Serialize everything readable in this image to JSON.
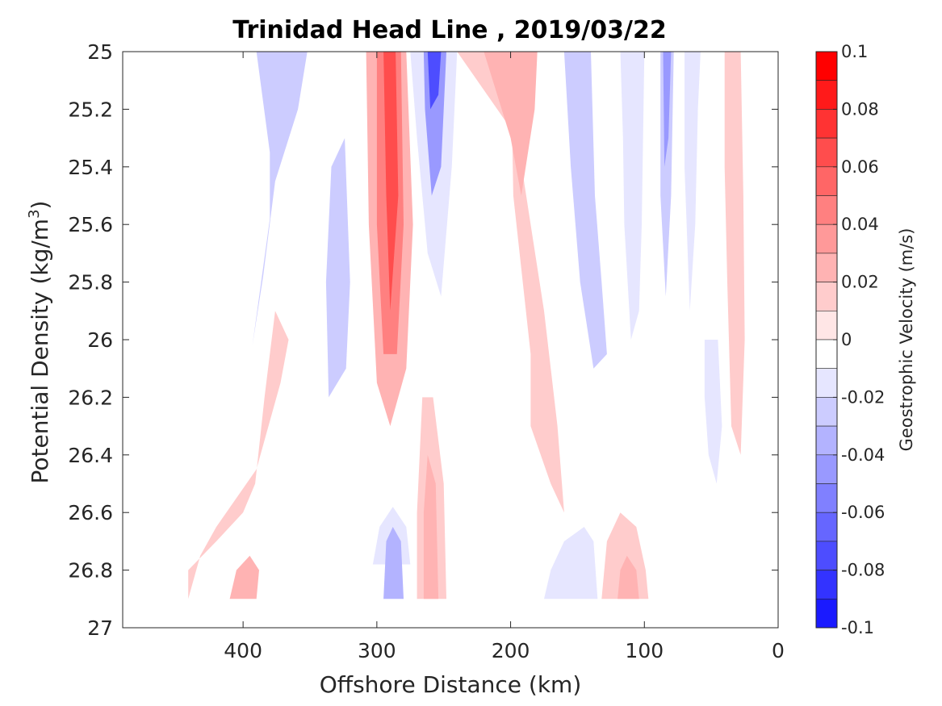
{
  "chart_data": {
    "type": "heatmap",
    "title": "Trinidad Head Line , 2019/03/22",
    "xlabel": "Offshore Distance (km)",
    "ylabel": "Potential Density (kg/m",
    "ylabel_sup": "3",
    "ylabel_close": ")",
    "xlim": [
      490,
      0
    ],
    "ylim": [
      25,
      27
    ],
    "x_reversed": true,
    "y_reversed": true,
    "xticks": [
      400,
      300,
      200,
      100,
      0
    ],
    "xtick_labels": [
      "400",
      "300",
      "200",
      "100",
      "0"
    ],
    "yticks": [
      25,
      25.2,
      25.4,
      25.6,
      25.8,
      26,
      26.2,
      26.4,
      26.6,
      26.8,
      27
    ],
    "ytick_labels": [
      "25",
      "25.2",
      "25.4",
      "25.6",
      "25.8",
      "26",
      "26.2",
      "26.4",
      "26.6",
      "26.8",
      "27"
    ],
    "colorbar": {
      "label": "Geostrophic Velocity (m/s)",
      "range": [
        -0.1,
        0.1
      ],
      "tick_values": [
        0.1,
        0.08,
        0.06,
        0.04,
        0.02,
        0,
        -0.02,
        -0.04,
        -0.06,
        -0.08,
        -0.1
      ],
      "tick_labels": [
        "0.1",
        "0.08",
        "0.06",
        "0.04",
        "0.02",
        "0",
        "-0.02",
        "-0.04",
        "-0.06",
        "-0.08",
        "-0.1"
      ],
      "levels": [
        0.1,
        0.09,
        0.08,
        0.07,
        0.06,
        0.05,
        0.04,
        0.03,
        0.02,
        0.01,
        0,
        -0.01,
        -0.02,
        -0.03,
        -0.04,
        -0.05,
        -0.06,
        -0.07,
        -0.08,
        -0.09,
        -0.1
      ],
      "colors": [
        "#ff0000",
        "#ff1a1a",
        "#ff3333",
        "#ff4d4d",
        "#ff6666",
        "#ff8080",
        "#ff9999",
        "#ffb3b3",
        "#ffcccc",
        "#ffe6e6",
        "#ffffff",
        "#e6e6ff",
        "#ccccff",
        "#b3b3ff",
        "#9999ff",
        "#8080ff",
        "#6666ff",
        "#4d4dff",
        "#3333ff",
        "#1a1aff"
      ]
    },
    "regions": [
      {
        "velocity": -0.01,
        "poly": [
          [
            441,
            25.0
          ],
          [
            414,
            25.0
          ],
          [
            434,
            25.12
          ],
          [
            437,
            25.5
          ],
          [
            437,
            25.8
          ],
          [
            437,
            26.2
          ],
          [
            432,
            26.3
          ],
          [
            447,
            26.39
          ],
          [
            459,
            26.2
          ],
          [
            470,
            25.8
          ],
          [
            478,
            25.5
          ],
          [
            490,
            25.3
          ],
          [
            490,
            25.0
          ]
        ]
      },
      {
        "velocity": -0.03,
        "poly": [
          [
            390,
            25.0
          ],
          [
            352,
            25.0
          ],
          [
            359,
            25.2
          ],
          [
            376,
            25.45
          ],
          [
            385,
            25.78
          ],
          [
            393,
            26.02
          ],
          [
            380,
            25.58
          ],
          [
            380,
            25.35
          ]
        ]
      },
      {
        "velocity": -0.01,
        "poly": [
          [
            318,
            25.0
          ],
          [
            308,
            25.1
          ],
          [
            312,
            25.6
          ],
          [
            316,
            26.3
          ],
          [
            328,
            26.55
          ],
          [
            350,
            26.55
          ],
          [
            366,
            26.3
          ],
          [
            372,
            26.0
          ],
          [
            360,
            25.7
          ],
          [
            345,
            25.4
          ],
          [
            330,
            25.1
          ]
        ]
      },
      {
        "velocity": -0.03,
        "poly": [
          [
            324,
            25.3
          ],
          [
            320,
            25.8
          ],
          [
            323,
            26.1
          ],
          [
            336,
            26.2
          ],
          [
            338,
            25.8
          ],
          [
            334,
            25.4
          ]
        ]
      },
      {
        "velocity": 0.02,
        "poly": [
          [
            308,
            25.0
          ],
          [
            278,
            25.0
          ],
          [
            273,
            25.6
          ],
          [
            278,
            26.1
          ],
          [
            290,
            26.3
          ],
          [
            300,
            26.15
          ],
          [
            306,
            25.6
          ]
        ]
      },
      {
        "velocity": 0.04,
        "poly": [
          [
            300,
            25.0
          ],
          [
            282,
            25.0
          ],
          [
            280,
            25.6
          ],
          [
            285,
            26.05
          ],
          [
            295,
            26.05
          ],
          [
            300,
            25.6
          ]
        ]
      },
      {
        "velocity": 0.06,
        "poly": [
          [
            295,
            25.0
          ],
          [
            286,
            25.0
          ],
          [
            284,
            25.5
          ],
          [
            290,
            25.9
          ],
          [
            293,
            25.5
          ]
        ]
      },
      {
        "velocity": -0.02,
        "poly": [
          [
            275,
            25.0
          ],
          [
            240,
            25.0
          ],
          [
            244,
            25.4
          ],
          [
            252,
            25.85
          ],
          [
            262,
            25.7
          ],
          [
            270,
            25.3
          ]
        ]
      },
      {
        "velocity": -0.05,
        "poly": [
          [
            265,
            25.0
          ],
          [
            248,
            25.0
          ],
          [
            252,
            25.4
          ],
          [
            259,
            25.5
          ],
          [
            264,
            25.2
          ]
        ]
      },
      {
        "velocity": -0.08,
        "poly": [
          [
            262,
            25.0
          ],
          [
            252,
            25.0
          ],
          [
            254,
            25.15
          ],
          [
            260,
            25.2
          ]
        ]
      },
      {
        "velocity": -0.02,
        "poly": [
          [
            303,
            26.78
          ],
          [
            275,
            26.78
          ],
          [
            278,
            26.65
          ],
          [
            288,
            26.58
          ],
          [
            298,
            26.65
          ]
        ]
      },
      {
        "velocity": -0.04,
        "poly": [
          [
            295,
            26.9
          ],
          [
            280,
            26.9
          ],
          [
            282,
            26.7
          ],
          [
            288,
            26.65
          ],
          [
            293,
            26.7
          ]
        ]
      },
      {
        "velocity": 0.01,
        "poly": [
          [
            441,
            26.9
          ],
          [
            432,
            26.75
          ],
          [
            420,
            26.65
          ],
          [
            390,
            26.45
          ],
          [
            372,
            26.15
          ],
          [
            366,
            26.0
          ],
          [
            376,
            25.9
          ],
          [
            384,
            26.2
          ],
          [
            391,
            26.5
          ],
          [
            400,
            26.6
          ],
          [
            420,
            26.7
          ],
          [
            441,
            26.8
          ]
        ]
      },
      {
        "velocity": 0.02,
        "poly": [
          [
            410,
            26.9
          ],
          [
            390,
            26.9
          ],
          [
            388,
            26.8
          ],
          [
            395,
            26.75
          ],
          [
            405,
            26.8
          ]
        ]
      },
      {
        "velocity": 0.01,
        "poly": [
          [
            270,
            26.9
          ],
          [
            248,
            26.9
          ],
          [
            250,
            26.5
          ],
          [
            258,
            26.2
          ],
          [
            266,
            26.2
          ],
          [
            270,
            26.6
          ]
        ]
      },
      {
        "velocity": 0.02,
        "poly": [
          [
            265,
            26.9
          ],
          [
            254,
            26.9
          ],
          [
            256,
            26.5
          ],
          [
            262,
            26.4
          ],
          [
            265,
            26.6
          ]
        ]
      },
      {
        "velocity": 0.01,
        "poly": [
          [
            240,
            25.0
          ],
          [
            200,
            25.0
          ],
          [
            198,
            25.5
          ],
          [
            185,
            26.05
          ],
          [
            185,
            26.3
          ],
          [
            170,
            26.5
          ],
          [
            160,
            26.6
          ],
          [
            165,
            26.3
          ],
          [
            175,
            25.9
          ],
          [
            185,
            25.6
          ],
          [
            195,
            25.3
          ]
        ]
      },
      {
        "velocity": 0.02,
        "poly": [
          [
            220,
            25.0
          ],
          [
            180,
            25.0
          ],
          [
            182,
            25.2
          ],
          [
            192,
            25.5
          ],
          [
            200,
            25.3
          ]
        ]
      },
      {
        "velocity": -0.01,
        "poly": [
          [
            170,
            25.0
          ],
          [
            120,
            25.0
          ],
          [
            115,
            25.5
          ],
          [
            110,
            25.8
          ],
          [
            110,
            26.2
          ],
          [
            125,
            26.42
          ],
          [
            135,
            26.35
          ],
          [
            145,
            26.0
          ],
          [
            160,
            25.5
          ],
          [
            168,
            25.2
          ]
        ]
      },
      {
        "velocity": -0.03,
        "poly": [
          [
            160,
            25.0
          ],
          [
            140,
            25.0
          ],
          [
            137,
            25.5
          ],
          [
            132,
            25.8
          ],
          [
            128,
            26.05
          ],
          [
            138,
            26.1
          ],
          [
            148,
            25.8
          ],
          [
            155,
            25.4
          ]
        ]
      },
      {
        "velocity": -0.02,
        "poly": [
          [
            118,
            25.0
          ],
          [
            100,
            25.0
          ],
          [
            102,
            25.6
          ],
          [
            104,
            25.9
          ],
          [
            110,
            26.0
          ],
          [
            115,
            25.6
          ],
          [
            116,
            25.3
          ]
        ]
      },
      {
        "velocity": -0.02,
        "poly": [
          [
            175,
            26.9
          ],
          [
            135,
            26.9
          ],
          [
            138,
            26.7
          ],
          [
            145,
            26.65
          ],
          [
            160,
            26.7
          ],
          [
            170,
            26.8
          ]
        ]
      },
      {
        "velocity": 0.01,
        "poly": [
          [
            132,
            26.9
          ],
          [
            97,
            26.9
          ],
          [
            99,
            26.8
          ],
          [
            106,
            26.65
          ],
          [
            118,
            26.6
          ],
          [
            128,
            26.7
          ]
        ]
      },
      {
        "velocity": 0.02,
        "poly": [
          [
            120,
            26.9
          ],
          [
            104,
            26.9
          ],
          [
            106,
            26.8
          ],
          [
            113,
            26.75
          ],
          [
            118,
            26.8
          ]
        ]
      },
      {
        "velocity": -0.01,
        "poly": [
          [
            95,
            25.0
          ],
          [
            73,
            25.0
          ],
          [
            76,
            25.6
          ],
          [
            82,
            26.0
          ],
          [
            90,
            26.1
          ],
          [
            95,
            25.8
          ]
        ]
      },
      {
        "velocity": -0.03,
        "poly": [
          [
            88,
            25.0
          ],
          [
            78,
            25.0
          ],
          [
            80,
            25.5
          ],
          [
            84,
            25.85
          ],
          [
            88,
            25.5
          ]
        ]
      },
      {
        "velocity": -0.05,
        "poly": [
          [
            86,
            25.0
          ],
          [
            80,
            25.0
          ],
          [
            82,
            25.3
          ],
          [
            85,
            25.4
          ]
        ]
      },
      {
        "velocity": -0.02,
        "poly": [
          [
            70,
            25.0
          ],
          [
            58,
            25.0
          ],
          [
            60,
            25.2
          ],
          [
            62,
            25.6
          ],
          [
            66,
            25.9
          ],
          [
            70,
            25.4
          ]
        ]
      },
      {
        "velocity": 0.01,
        "poly": [
          [
            40,
            25.0
          ],
          [
            28,
            25.0
          ],
          [
            26,
            25.5
          ],
          [
            25,
            26.0
          ],
          [
            28,
            26.4
          ],
          [
            35,
            26.3
          ],
          [
            38,
            25.8
          ],
          [
            40,
            25.4
          ]
        ]
      },
      {
        "velocity": -0.02,
        "poly": [
          [
            55,
            26.0
          ],
          [
            45,
            26.0
          ],
          [
            42,
            26.3
          ],
          [
            46,
            26.5
          ],
          [
            52,
            26.4
          ],
          [
            55,
            26.2
          ]
        ]
      }
    ]
  }
}
